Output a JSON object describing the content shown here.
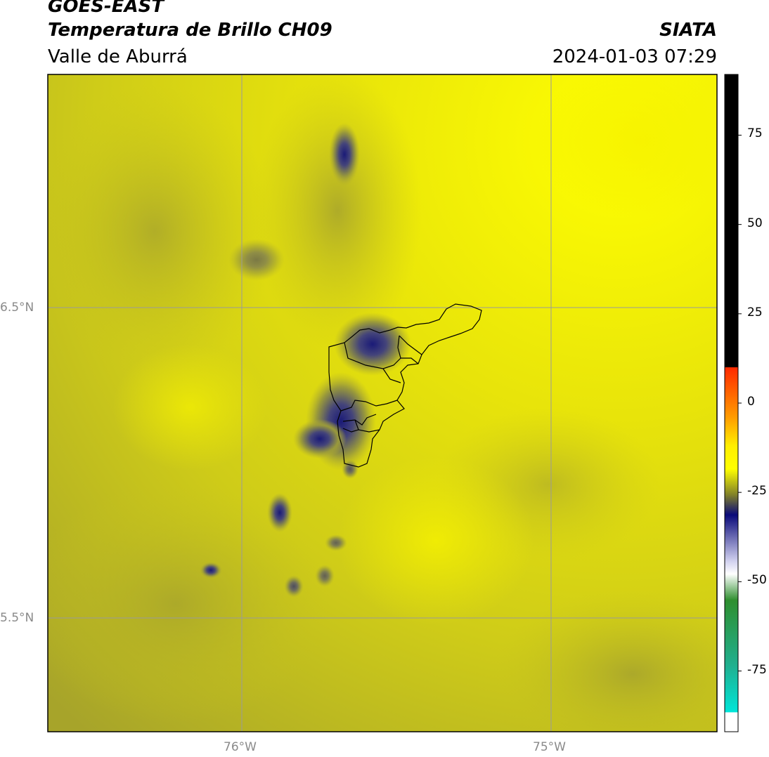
{
  "header": {
    "satellite": "GOES-EAST",
    "product": "Temperatura de Brillo CH09",
    "region": "Valle de Aburrá",
    "brand": "SIATA",
    "timestamp": "2024-01-03 07:29"
  },
  "map": {
    "lat_labels": [
      "6.5°N",
      "5.5°N"
    ],
    "lon_labels": [
      "76°W",
      "75°W"
    ]
  },
  "colorbar": {
    "tick_labels": [
      "75",
      "50",
      "25",
      "0",
      "-25",
      "-50",
      "-75"
    ],
    "tick_values": [
      75,
      50,
      25,
      0,
      -25,
      -50,
      -75
    ],
    "range": [
      -92,
      92
    ],
    "colors": {
      "black": "#000000",
      "red": "#ff2a00",
      "orange": "#ff9900",
      "yellow": "#ffff00",
      "olive": "#7f7f2a",
      "navy": "#0a0a7a",
      "white": "#ffffff",
      "green": "#2f8f2f",
      "cyan": "#00e5d8"
    }
  }
}
